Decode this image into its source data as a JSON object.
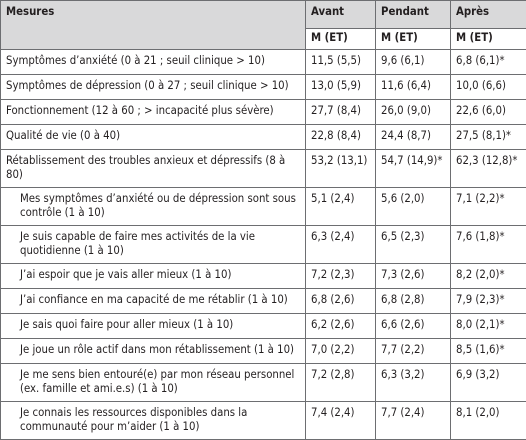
{
  "table": {
    "headers": [
      "Mesures",
      "Avant",
      "Pendant",
      "Après"
    ],
    "subheaders": [
      "M (ET)",
      "M (ET)",
      "M (ET)"
    ],
    "rows": [
      [
        "Symptômes d’anxiété (0 à 21 ; seuil clinique > 10)",
        "11,5 (5,5)",
        "9,6 (6,1)",
        "6,8 (6,1)*"
      ],
      [
        "Symptômes de dépression (0 à 27 ; seuil clinique > 10)",
        "13,0 (5,9)",
        "11,6 (6,4)",
        "10,0 (6,6)"
      ],
      [
        "Fonctionnement (12 à 60 ; > incapacité plus sévère)",
        "27,7 (8,4)",
        "26,0 (9,0)",
        "22,6 (6,0)"
      ],
      [
        "Qualité de vie (0 à 40)",
        "22,8 (8,4)",
        "24,4 (8,7)",
        "27,5 (8,1)*"
      ],
      [
        "Rétablissement des troubles anxieux et dépressifs (8 à 80)",
        "53,2 (13,1)",
        "54,7 (14,9)*",
        "62,3 (12,8)*"
      ],
      [
        "Mes symptômes d’anxiété ou de dépression sont sous contrôle (1 à 10)",
        "5,1 (2,4)",
        "5,6 (2,0)",
        "7,1 (2,2)*"
      ],
      [
        "Je suis capable de faire mes activités de la vie quotidienne (1 à 10)",
        "6,3 (2,4)",
        "6,5 (2,3)",
        "7,6 (1,8)*"
      ],
      [
        "J’ai espoir que je vais aller mieux (1 à 10)",
        "7,2 (2,3)",
        "7,3 (2,6)",
        "8,2 (2,0)*"
      ],
      [
        "J’ai confiance en ma capacité de me rétablir (1 à 10)",
        "6,8 (2,6)",
        "6,8 (2,8)",
        "7,9 (2,3)*"
      ],
      [
        "Je sais quoi faire pour aller mieux (1 à 10)",
        "6,2 (2,6)",
        "6,6 (2,6)",
        "8,0 (2,1)*"
      ],
      [
        "Je joue un rôle actif dans mon rétablissement (1 à 10)",
        "7,0 (2,2)",
        "7,7 (2,2)",
        "8,5 (1,6)*"
      ],
      [
        "Je me sens bien entouré(e) par mon réseau personnel (ex. famille et ami.e.s) (1 à 10)",
        "7,2 (2,8)",
        "6,3 (3,2)",
        "6,9 (3,2)"
      ],
      [
        "Je connais les ressources disponibles dans la communauté pour m’aider (1 à 10)",
        "7,4 (2,4)",
        "7,7 (2,4)",
        "8,1 (2,0)"
      ]
    ]
  }
}
